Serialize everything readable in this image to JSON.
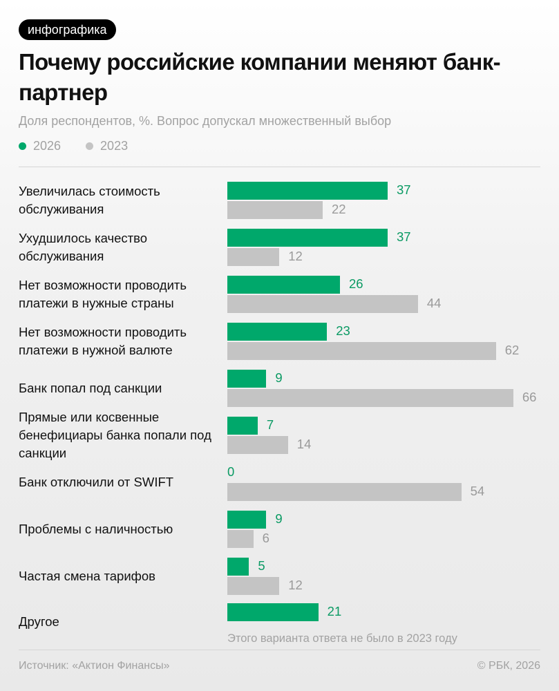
{
  "tag": "инфографика",
  "title": "Почему российские компании меняют банк-партнер",
  "subtitle": "Доля респондентов, %. Вопрос допускал множественный выбор",
  "colors": {
    "2026": "#00a86b",
    "2023": "#c4c4c4",
    "value_2026": "#0a9a63",
    "value_2023": "#9a9a9a"
  },
  "chart_data": {
    "type": "bar",
    "orientation": "horizontal",
    "categories": [
      "Увеличилась стоимость обслуживания",
      "Ухудшилось качество обслуживания",
      "Нет возможности проводить платежи в нужные страны",
      "Нет возможности проводить платежи в нужной валюте",
      "Банк попал под санкции",
      "Прямые или косвенные бенефициары банка попали под санкции",
      "Банк отключили от SWIFT",
      "Проблемы с наличностью",
      "Частая смена тарифов",
      "Другое"
    ],
    "series": [
      {
        "name": "2026",
        "values": [
          37,
          37,
          26,
          23,
          9,
          7,
          0,
          9,
          5,
          21
        ]
      },
      {
        "name": "2023",
        "values": [
          22,
          12,
          44,
          62,
          66,
          14,
          54,
          6,
          12,
          null
        ]
      }
    ],
    "annotations": [
      {
        "category": "Другое",
        "text": "Этого варианта ответа не было в 2023 году"
      }
    ],
    "xlim": [
      0,
      66
    ],
    "grid": false,
    "legend": "top-left"
  },
  "footer": {
    "source": "Источник: «Актион Финансы»",
    "copyright": "© РБК, 2026"
  }
}
